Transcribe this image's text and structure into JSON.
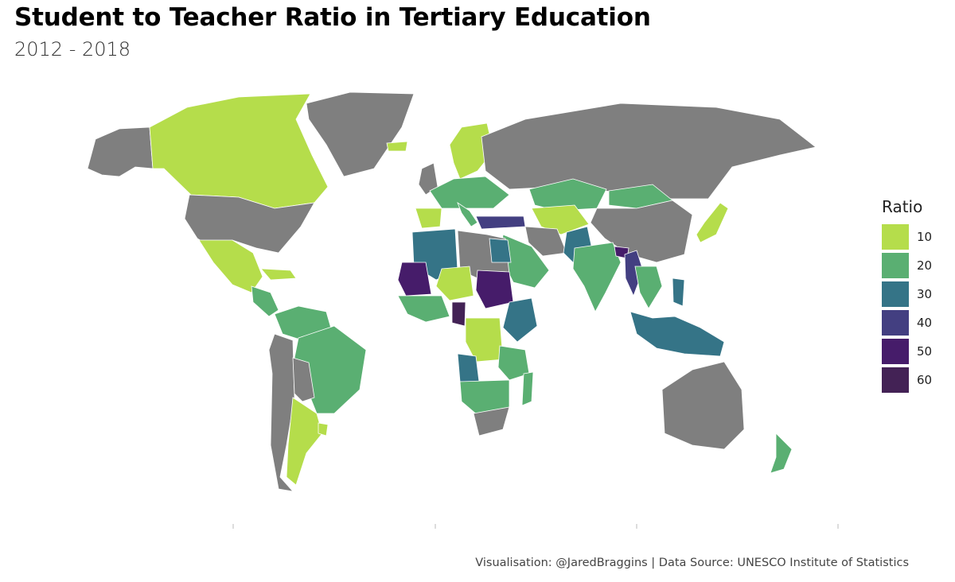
{
  "title": "Student to Teacher Ratio in Tertiary Education",
  "subtitle": "2012 - 2018",
  "legend": {
    "title": "Ratio",
    "items": [
      {
        "label": "10",
        "color": "#b5dd4b"
      },
      {
        "label": "20",
        "color": "#5aaf72"
      },
      {
        "label": "30",
        "color": "#357487"
      },
      {
        "label": "40",
        "color": "#433f81"
      },
      {
        "label": "50",
        "color": "#461c6a"
      },
      {
        "label": "60",
        "color": "#432255"
      }
    ]
  },
  "no_data_color": "#7f7f7f",
  "caption": "Visualisation: @JaredBraggins | Data Source: UNESCO Institute of Statistics"
}
